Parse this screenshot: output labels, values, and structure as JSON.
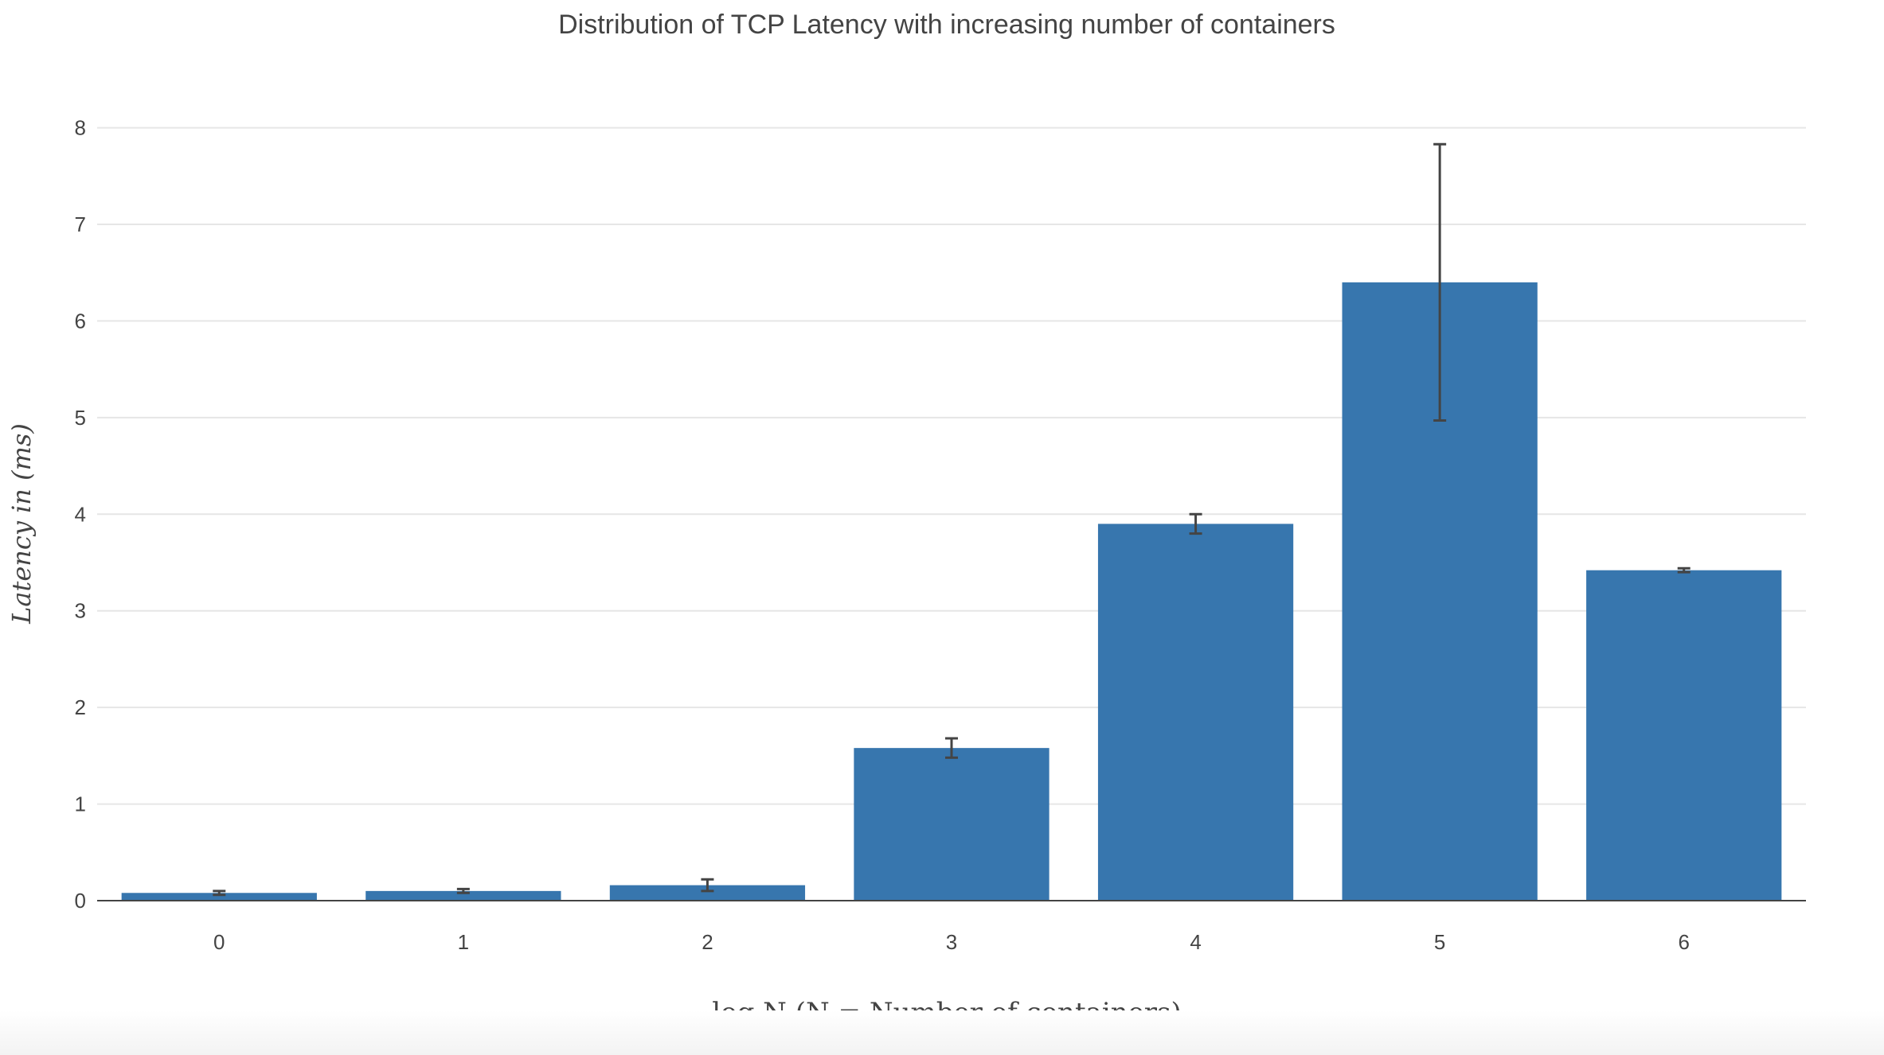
{
  "chart_data": {
    "type": "bar",
    "title": "Distribution of TCP Latency with increasing number of containers",
    "xlabel": "log N (N = Number of containers)",
    "ylabel": "Latency in (ms)",
    "categories": [
      "0",
      "1",
      "2",
      "3",
      "4",
      "5",
      "6"
    ],
    "series": [
      {
        "values": [
          0.08,
          0.1,
          0.16,
          1.58,
          3.9,
          6.4,
          3.42
        ],
        "error": [
          0.02,
          0.02,
          0.06,
          0.1,
          0.1,
          1.43,
          0.02
        ]
      }
    ],
    "ylim": [
      0,
      8.4
    ],
    "yticks": [
      0,
      1,
      2,
      3,
      4,
      5,
      6,
      7,
      8
    ],
    "grid": true,
    "legend": "none",
    "bar_color": "#3776ae",
    "error_color": "#444444",
    "gridline_color": "#e6e6e6",
    "axis_line_color": "#444444",
    "text_color": "#444444"
  }
}
